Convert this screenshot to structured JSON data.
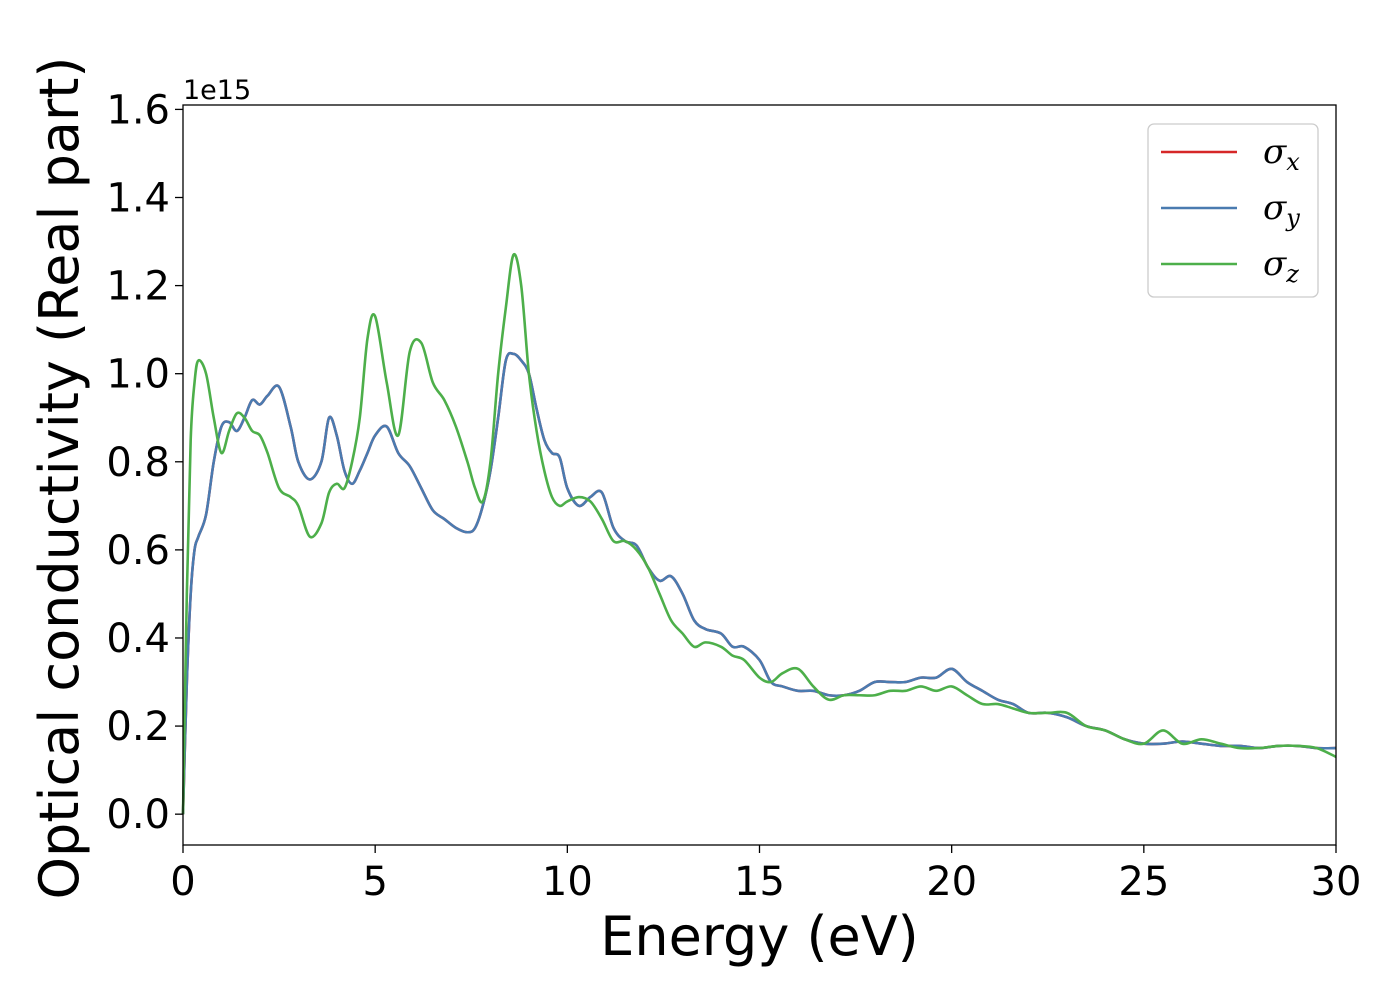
{
  "chart_data": {
    "type": "line",
    "xlabel": "Energy (eV)",
    "ylabel": "Optical conductivity (Real part)",
    "y_offset_label": "1e15",
    "xlim": [
      0,
      30
    ],
    "ylim": [
      -0.07,
      1.61
    ],
    "x_ticks": [
      0,
      5,
      10,
      15,
      20,
      25,
      30
    ],
    "y_ticks": [
      0.0,
      0.2,
      0.4,
      0.6,
      0.8,
      1.0,
      1.2,
      1.4,
      1.6
    ],
    "x_tick_labels": [
      "0",
      "5",
      "10",
      "15",
      "20",
      "25",
      "30"
    ],
    "y_tick_labels": [
      "0.0",
      "0.2",
      "0.4",
      "0.6",
      "0.8",
      "1.0",
      "1.2",
      "1.4",
      "1.6"
    ],
    "grid": false,
    "legend_position": "top-right",
    "series": [
      {
        "name": "σx",
        "symbol": "σ",
        "subscript": "x",
        "color": "#d62728",
        "x": [
          0,
          0.1,
          0.2,
          0.3,
          0.4,
          0.6,
          0.8,
          1.0,
          1.2,
          1.4,
          1.6,
          1.8,
          2.0,
          2.2,
          2.5,
          2.8,
          3.0,
          3.3,
          3.6,
          3.8,
          4.0,
          4.2,
          4.4,
          4.6,
          4.8,
          5.0,
          5.3,
          5.6,
          5.9,
          6.2,
          6.5,
          6.8,
          7.1,
          7.4,
          7.6,
          7.8,
          8.0,
          8.2,
          8.4,
          8.6,
          8.8,
          9.0,
          9.2,
          9.4,
          9.6,
          9.8,
          10.0,
          10.3,
          10.6,
          10.9,
          11.2,
          11.5,
          11.8,
          12.1,
          12.4,
          12.7,
          13.0,
          13.3,
          13.6,
          14.0,
          14.3,
          14.6,
          15.0,
          15.3,
          15.6,
          16.0,
          16.4,
          16.8,
          17.2,
          17.6,
          18.0,
          18.4,
          18.8,
          19.2,
          19.6,
          20.0,
          20.4,
          20.8,
          21.2,
          21.6,
          22.0,
          22.5,
          23.0,
          23.5,
          24.0,
          24.5,
          25.0,
          25.5,
          26.0,
          26.5,
          27.0,
          27.5,
          28.0,
          28.5,
          29.0,
          29.5,
          30.0
        ],
        "values": [
          0.0,
          0.3,
          0.5,
          0.6,
          0.63,
          0.68,
          0.8,
          0.88,
          0.89,
          0.87,
          0.9,
          0.94,
          0.93,
          0.95,
          0.97,
          0.88,
          0.8,
          0.76,
          0.8,
          0.9,
          0.86,
          0.78,
          0.75,
          0.78,
          0.82,
          0.86,
          0.88,
          0.82,
          0.79,
          0.74,
          0.69,
          0.67,
          0.65,
          0.64,
          0.65,
          0.7,
          0.78,
          0.9,
          1.03,
          1.045,
          1.03,
          1.0,
          0.92,
          0.85,
          0.82,
          0.81,
          0.74,
          0.7,
          0.72,
          0.73,
          0.65,
          0.62,
          0.61,
          0.56,
          0.53,
          0.54,
          0.5,
          0.44,
          0.42,
          0.41,
          0.38,
          0.38,
          0.35,
          0.3,
          0.29,
          0.28,
          0.28,
          0.27,
          0.27,
          0.28,
          0.3,
          0.3,
          0.3,
          0.31,
          0.31,
          0.33,
          0.3,
          0.28,
          0.26,
          0.25,
          0.23,
          0.23,
          0.22,
          0.2,
          0.19,
          0.17,
          0.16,
          0.16,
          0.165,
          0.16,
          0.155,
          0.155,
          0.15,
          0.155,
          0.155,
          0.15,
          0.15
        ]
      },
      {
        "name": "σy",
        "symbol": "σ",
        "subscript": "y",
        "color": "#4a7bb0",
        "x": [
          0,
          0.1,
          0.2,
          0.3,
          0.4,
          0.6,
          0.8,
          1.0,
          1.2,
          1.4,
          1.6,
          1.8,
          2.0,
          2.2,
          2.5,
          2.8,
          3.0,
          3.3,
          3.6,
          3.8,
          4.0,
          4.2,
          4.4,
          4.6,
          4.8,
          5.0,
          5.3,
          5.6,
          5.9,
          6.2,
          6.5,
          6.8,
          7.1,
          7.4,
          7.6,
          7.8,
          8.0,
          8.2,
          8.4,
          8.6,
          8.8,
          9.0,
          9.2,
          9.4,
          9.6,
          9.8,
          10.0,
          10.3,
          10.6,
          10.9,
          11.2,
          11.5,
          11.8,
          12.1,
          12.4,
          12.7,
          13.0,
          13.3,
          13.6,
          14.0,
          14.3,
          14.6,
          15.0,
          15.3,
          15.6,
          16.0,
          16.4,
          16.8,
          17.2,
          17.6,
          18.0,
          18.4,
          18.8,
          19.2,
          19.6,
          20.0,
          20.4,
          20.8,
          21.2,
          21.6,
          22.0,
          22.5,
          23.0,
          23.5,
          24.0,
          24.5,
          25.0,
          25.5,
          26.0,
          26.5,
          27.0,
          27.5,
          28.0,
          28.5,
          29.0,
          29.5,
          30.0
        ],
        "values": [
          0.0,
          0.3,
          0.5,
          0.6,
          0.63,
          0.68,
          0.8,
          0.88,
          0.89,
          0.87,
          0.9,
          0.94,
          0.93,
          0.95,
          0.97,
          0.88,
          0.8,
          0.76,
          0.8,
          0.9,
          0.86,
          0.78,
          0.75,
          0.78,
          0.82,
          0.86,
          0.88,
          0.82,
          0.79,
          0.74,
          0.69,
          0.67,
          0.65,
          0.64,
          0.65,
          0.7,
          0.78,
          0.9,
          1.03,
          1.045,
          1.03,
          1.0,
          0.92,
          0.85,
          0.82,
          0.81,
          0.74,
          0.7,
          0.72,
          0.73,
          0.65,
          0.62,
          0.61,
          0.56,
          0.53,
          0.54,
          0.5,
          0.44,
          0.42,
          0.41,
          0.38,
          0.38,
          0.35,
          0.3,
          0.29,
          0.28,
          0.28,
          0.27,
          0.27,
          0.28,
          0.3,
          0.3,
          0.3,
          0.31,
          0.31,
          0.33,
          0.3,
          0.28,
          0.26,
          0.25,
          0.23,
          0.23,
          0.22,
          0.2,
          0.19,
          0.17,
          0.16,
          0.16,
          0.165,
          0.16,
          0.155,
          0.155,
          0.15,
          0.155,
          0.155,
          0.15,
          0.15
        ]
      },
      {
        "name": "σz",
        "symbol": "σ",
        "subscript": "z",
        "color": "#4daf4a",
        "x": [
          0,
          0.1,
          0.2,
          0.3,
          0.4,
          0.6,
          0.8,
          1.0,
          1.2,
          1.4,
          1.6,
          1.8,
          2.0,
          2.2,
          2.5,
          2.8,
          3.0,
          3.3,
          3.6,
          3.8,
          4.0,
          4.2,
          4.4,
          4.6,
          4.8,
          5.0,
          5.3,
          5.6,
          5.9,
          6.2,
          6.5,
          6.8,
          7.1,
          7.4,
          7.6,
          7.8,
          8.0,
          8.2,
          8.4,
          8.6,
          8.8,
          9.0,
          9.2,
          9.4,
          9.6,
          9.8,
          10.0,
          10.3,
          10.6,
          10.9,
          11.2,
          11.5,
          11.8,
          12.1,
          12.4,
          12.7,
          13.0,
          13.3,
          13.6,
          14.0,
          14.3,
          14.6,
          15.0,
          15.3,
          15.6,
          16.0,
          16.4,
          16.8,
          17.2,
          17.6,
          18.0,
          18.4,
          18.8,
          19.2,
          19.6,
          20.0,
          20.4,
          20.8,
          21.2,
          21.6,
          22.0,
          22.5,
          23.0,
          23.5,
          24.0,
          24.5,
          25.0,
          25.5,
          26.0,
          26.5,
          27.0,
          27.5,
          28.0,
          28.5,
          29.0,
          29.5,
          30.0
        ],
        "values": [
          0.0,
          0.5,
          0.85,
          0.98,
          1.03,
          1.0,
          0.9,
          0.82,
          0.87,
          0.91,
          0.9,
          0.87,
          0.86,
          0.82,
          0.74,
          0.72,
          0.7,
          0.63,
          0.66,
          0.73,
          0.75,
          0.74,
          0.8,
          0.9,
          1.08,
          1.13,
          0.98,
          0.86,
          1.05,
          1.07,
          0.98,
          0.94,
          0.88,
          0.8,
          0.74,
          0.71,
          0.8,
          1.0,
          1.15,
          1.27,
          1.2,
          1.0,
          0.87,
          0.78,
          0.72,
          0.7,
          0.71,
          0.72,
          0.71,
          0.67,
          0.62,
          0.62,
          0.6,
          0.56,
          0.5,
          0.44,
          0.41,
          0.38,
          0.39,
          0.38,
          0.36,
          0.35,
          0.31,
          0.3,
          0.32,
          0.33,
          0.29,
          0.26,
          0.27,
          0.27,
          0.27,
          0.28,
          0.28,
          0.29,
          0.28,
          0.29,
          0.27,
          0.25,
          0.25,
          0.24,
          0.23,
          0.23,
          0.23,
          0.2,
          0.19,
          0.17,
          0.16,
          0.19,
          0.16,
          0.17,
          0.16,
          0.15,
          0.15,
          0.155,
          0.155,
          0.15,
          0.13
        ]
      }
    ]
  }
}
